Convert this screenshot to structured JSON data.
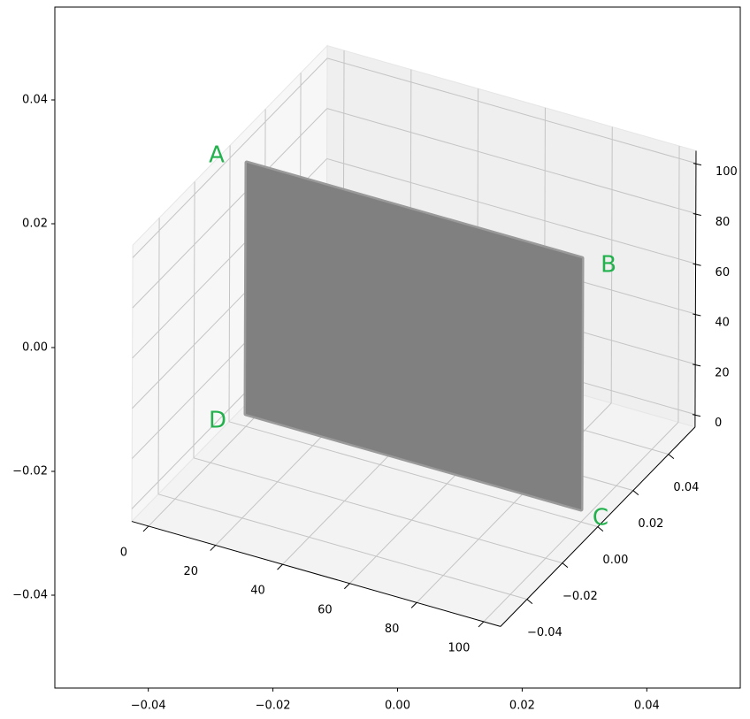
{
  "chart_data": [
    {
      "type": "axes2d",
      "xlim": [
        -0.055,
        0.055
      ],
      "ylim": [
        -0.055,
        0.055
      ],
      "xticks": [
        {
          "value": -0.04,
          "label": "−0.04"
        },
        {
          "value": -0.02,
          "label": "−0.02"
        },
        {
          "value": 0,
          "label": "0.00"
        },
        0.02,
        0.04
      ],
      "yticks": [
        {
          "value": -0.04,
          "label": "−0.04"
        },
        {
          "value": -0.02,
          "label": "−0.02"
        },
        {
          "value": 0,
          "label": "0.00"
        },
        0.02,
        0.04
      ]
    },
    {
      "type": "surface3d",
      "xlim": [
        -5,
        105
      ],
      "ylim": [
        -0.055,
        0.055
      ],
      "zlim": [
        -5,
        105
      ],
      "xticks": [
        0,
        20,
        40,
        60,
        80,
        100
      ],
      "yticks": [
        {
          "value": -0.04,
          "label": "−0.04"
        },
        {
          "value": -0.02,
          "label": "−0.02"
        },
        {
          "value": 0,
          "label": "0.00"
        },
        0.02,
        0.04
      ],
      "zticks": [
        0,
        20,
        40,
        60,
        80,
        100
      ],
      "grid": true,
      "surface": {
        "x": [
          0,
          100
        ],
        "y": 0,
        "z": [
          0,
          100
        ],
        "color": "#808080"
      },
      "labels": [
        "A",
        "B",
        "C",
        "D"
      ],
      "label_color": "#22b14c"
    }
  ]
}
